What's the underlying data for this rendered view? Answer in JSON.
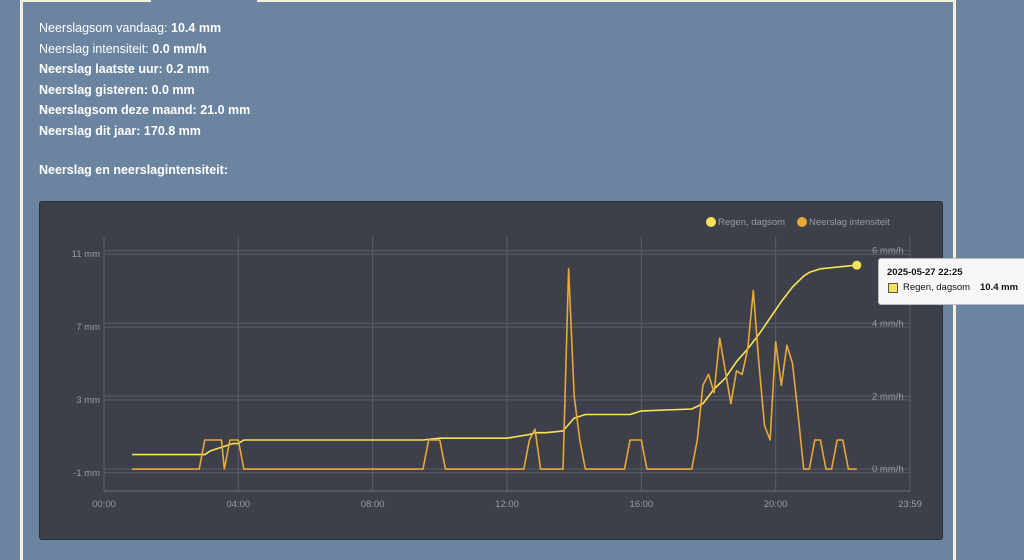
{
  "stats": [
    {
      "label": "Neerslagsom vandaag:",
      "value": "10.4 mm",
      "bold_label": false
    },
    {
      "label": "Neerslag intensiteit:",
      "value": "0.0 mm/h",
      "bold_label": false
    },
    {
      "label": "Neerslag laatste uur:",
      "value": "0.2 mm",
      "bold_label": true
    },
    {
      "label": "Neerslag gisteren:",
      "value": "0.0 mm",
      "bold_label": true
    },
    {
      "label": "Neerslagsom deze maand:",
      "value": "21.0 mm",
      "bold_label": true
    },
    {
      "label": "Neerslag dit jaar:",
      "value": "170.8 mm",
      "bold_label": true
    }
  ],
  "section_title": "Neerslag en neerslagintensiteit:",
  "tooltip": {
    "date": "2025-05-27 22:25",
    "series_name": "Regen, dagsom",
    "value": "10.4 mm"
  },
  "colors": {
    "background": "#6b84a0",
    "chart_bg": "#3e4049",
    "rain_sum": "#f7e35a",
    "intensity": "#e8a83a",
    "grid": "#5a5d68",
    "tick": "#9a9ca4"
  },
  "chart_data": {
    "type": "line",
    "title": "",
    "legend_position": "top-right",
    "grid": true,
    "xlim_hours": [
      0,
      24
    ],
    "x_ticks": [
      "00:00",
      "04:00",
      "08:00",
      "12:00",
      "16:00",
      "20:00",
      "23:59"
    ],
    "y_left": {
      "ticks": [
        "11 mm",
        "7 mm",
        "3 mm",
        "-1 mm"
      ],
      "tick_values": [
        11,
        7,
        3,
        -1
      ],
      "lim": [
        -2,
        12
      ]
    },
    "y_right": {
      "ticks": [
        "6 mm/h",
        "4 mm/h",
        "2 mm/h",
        "0 mm/h"
      ],
      "tick_values": [
        6,
        4,
        2,
        0
      ],
      "lim": [
        -0.6,
        6.4
      ]
    },
    "series": [
      {
        "name": "Regen, dagsom",
        "axis": "left",
        "color": "#f7e35a",
        "x": [
          "00:50",
          "03:00",
          "03:10",
          "03:30",
          "03:50",
          "04:00",
          "04:10",
          "09:30",
          "10:00",
          "12:00",
          "12:40",
          "12:50",
          "13:10",
          "13:40",
          "14:00",
          "14:20",
          "15:00",
          "15:40",
          "16:00",
          "17:30",
          "17:50",
          "18:10",
          "18:30",
          "18:50",
          "19:10",
          "19:30",
          "19:50",
          "20:10",
          "20:30",
          "20:50",
          "21:00",
          "21:20",
          "22:25"
        ],
        "values": [
          0.0,
          0.0,
          0.2,
          0.4,
          0.6,
          0.6,
          0.8,
          0.8,
          0.9,
          0.9,
          1.1,
          1.2,
          1.2,
          1.3,
          2.0,
          2.2,
          2.2,
          2.2,
          2.4,
          2.5,
          2.8,
          3.6,
          4.2,
          5.1,
          5.8,
          6.6,
          7.5,
          8.4,
          9.2,
          9.8,
          10.0,
          10.2,
          10.4
        ]
      },
      {
        "name": "Neerslag intensiteit",
        "axis": "right",
        "color": "#e8a83a",
        "x": [
          "00:50",
          "02:50",
          "03:00",
          "03:30",
          "03:35",
          "03:45",
          "04:00",
          "04:10",
          "09:30",
          "09:40",
          "10:00",
          "10:10",
          "12:30",
          "12:40",
          "12:50",
          "13:00",
          "13:40",
          "13:50",
          "14:00",
          "14:10",
          "14:20",
          "15:30",
          "15:40",
          "16:00",
          "16:10",
          "17:30",
          "17:40",
          "17:50",
          "18:00",
          "18:10",
          "18:20",
          "18:30",
          "18:40",
          "18:50",
          "19:00",
          "19:10",
          "19:20",
          "19:30",
          "19:40",
          "19:50",
          "20:00",
          "20:10",
          "20:20",
          "20:30",
          "20:40",
          "20:50",
          "21:00",
          "21:10",
          "21:20",
          "21:30",
          "21:40",
          "21:50",
          "22:00",
          "22:10",
          "22:25"
        ],
        "values": [
          0.0,
          0.0,
          0.8,
          0.8,
          0.0,
          0.8,
          0.8,
          0.0,
          0.0,
          0.8,
          0.8,
          0.0,
          0.0,
          0.8,
          1.1,
          0.0,
          0.0,
          5.5,
          2.0,
          0.8,
          0.0,
          0.0,
          0.8,
          0.8,
          0.0,
          0.0,
          0.8,
          2.3,
          2.6,
          2.1,
          3.6,
          2.7,
          1.8,
          2.7,
          2.6,
          3.3,
          4.9,
          2.9,
          1.2,
          0.8,
          3.5,
          2.3,
          3.4,
          2.9,
          1.5,
          0.0,
          0.0,
          0.8,
          0.8,
          0.0,
          0.0,
          0.8,
          0.8,
          0.0,
          0.0
        ]
      }
    ]
  }
}
